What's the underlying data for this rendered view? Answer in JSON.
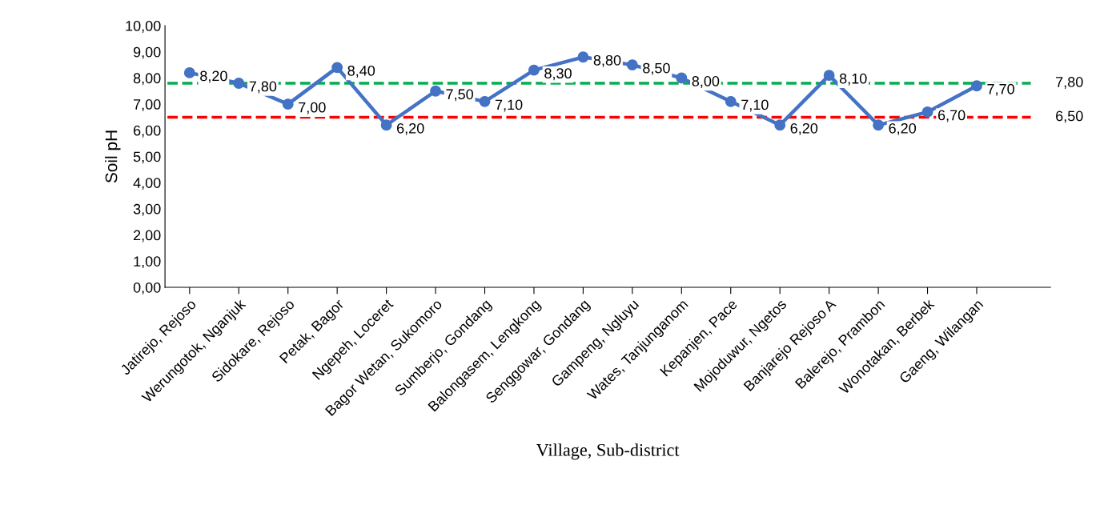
{
  "chart_data": {
    "type": "line",
    "xlabel": "Village, Sub-district",
    "ylabel": "Soil pH",
    "categories": [
      "Jatirejo, Rejoso",
      "Werungotok, Nganjuk",
      "Sidokare, Rejoso",
      "Petak, Bagor",
      "Ngepeh, Loceret",
      "Bagor Wetan, Sukomoro",
      "Sumberjo, Gondang",
      "Balongasem, Lengkong",
      "Senggowar, Gondang",
      "Gampeng, Ngluyu",
      "Wates, Tanjunganom",
      "Kepanjen, Pace",
      "Mojoduwur, Ngetos",
      "Banjarejo Rejoso A",
      "Balerejo, Prambon",
      "Wonotakan, Berbek",
      "Gaeng, Wilangan"
    ],
    "series": [
      {
        "color": "#4472c4",
        "values": [
          8.2,
          7.8,
          7.0,
          8.4,
          6.2,
          7.5,
          7.1,
          8.3,
          8.8,
          8.5,
          8.0,
          7.1,
          6.2,
          8.1,
          6.2,
          6.7,
          7.7
        ],
        "value_labels": [
          "8,20",
          "7,80",
          "7,00",
          "8,40",
          "6,20",
          "7,50",
          "7,10",
          "8,30",
          "8,80",
          "8,50",
          "8,00",
          "7,10",
          "6,20",
          "8,10",
          "6,20",
          "6,70",
          "7,70"
        ]
      }
    ],
    "ylim": [
      0,
      10
    ],
    "yticks": [
      {
        "value": 0,
        "label": "0,00"
      },
      {
        "value": 1,
        "label": "1,00"
      },
      {
        "value": 2,
        "label": "2,00"
      },
      {
        "value": 3,
        "label": "3,00"
      },
      {
        "value": 4,
        "label": "4,00"
      },
      {
        "value": 5,
        "label": "5,00"
      },
      {
        "value": 6,
        "label": "6,00"
      },
      {
        "value": 7,
        "label": "7,00"
      },
      {
        "value": 8,
        "label": "8,00"
      },
      {
        "value": 9,
        "label": "9,00"
      },
      {
        "value": 10,
        "label": "10,00"
      }
    ],
    "ref_lines": [
      {
        "axis": "y",
        "value": 7.8,
        "label": "7,80",
        "color": "#00b050",
        "line_style": "dashed"
      },
      {
        "axis": "y",
        "value": 6.5,
        "label": "6,50",
        "color": "#ff0000",
        "line_style": "dashed"
      }
    ],
    "marker": "circle",
    "line_style": "solid",
    "grid": false
  }
}
